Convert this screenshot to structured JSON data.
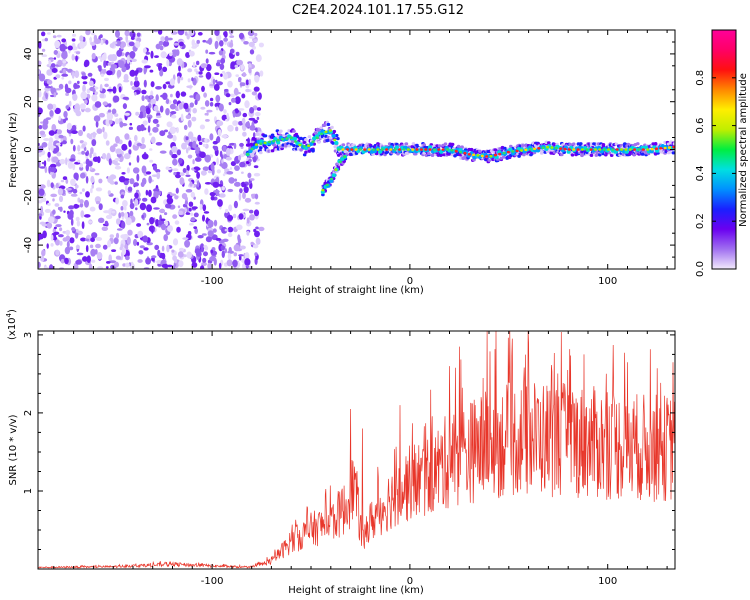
{
  "title": "C2E4.2024.101.17.55.G12",
  "chart_data": [
    {
      "type": "heatmap",
      "name": "spectrogram",
      "xlabel": "Height of straight line (km)",
      "ylabel": "Frequency (Hz)",
      "xlim": [
        -188,
        134
      ],
      "ylim": [
        -50,
        50
      ],
      "xticks": [
        -100,
        0,
        100
      ],
      "xtick_labels": [
        "-100",
        "0",
        "100"
      ],
      "yticks": [
        -40,
        -20,
        0,
        20,
        40
      ],
      "ytick_labels": [
        "-40",
        "-20",
        "0",
        "20",
        "40"
      ],
      "colorbar": {
        "label": "Normalized spectral amplitude",
        "range": [
          0,
          1
        ],
        "ticks": [
          0.0,
          0.2,
          0.4,
          0.6,
          0.8
        ],
        "tick_labels": [
          "0.0",
          "0.2",
          "0.4",
          "0.6",
          "0.8"
        ],
        "colors": [
          "#f2eafc",
          "#a070f0",
          "#6a00f0",
          "#1a20ff",
          "#0090ff",
          "#00e0e0",
          "#00ee40",
          "#c0ee00",
          "#ffee00",
          "#ff8800",
          "#ff1010",
          "#ff0066",
          "#ff0099"
        ]
      },
      "noise_region_x": [
        -188,
        -75
      ],
      "ridge": [
        [
          -82,
          -2
        ],
        [
          -78,
          2
        ],
        [
          -72,
          3
        ],
        [
          -66,
          4
        ],
        [
          -60,
          5
        ],
        [
          -56,
          2
        ],
        [
          -52,
          1
        ],
        [
          -48,
          4
        ],
        [
          -44,
          7
        ],
        [
          -40,
          8
        ],
        [
          -36,
          0
        ],
        [
          -30,
          0
        ],
        [
          -20,
          0
        ],
        [
          -10,
          0
        ],
        [
          0,
          0
        ],
        [
          10,
          0
        ],
        [
          20,
          0
        ],
        [
          30,
          -2
        ],
        [
          40,
          -3
        ],
        [
          50,
          -1
        ],
        [
          60,
          0
        ],
        [
          70,
          1
        ],
        [
          80,
          0
        ],
        [
          90,
          0
        ],
        [
          100,
          0
        ],
        [
          110,
          0
        ],
        [
          120,
          0
        ],
        [
          134,
          1
        ]
      ],
      "branch": [
        [
          -44,
          -17
        ],
        [
          -40,
          -13
        ],
        [
          -36,
          -6
        ],
        [
          -32,
          -2
        ]
      ]
    },
    {
      "type": "line",
      "name": "snr",
      "xlabel": "Height of straight line (km)",
      "ylabel": "SNR (10 * v/v)",
      "y_scale_label": "(x10",
      "y_scale_exp": "4",
      "y_scale_close": ")",
      "xlim": [
        -188,
        134
      ],
      "ylim": [
        0,
        3.05
      ],
      "xticks": [
        -100,
        0,
        100
      ],
      "xtick_labels": [
        "-100",
        "0",
        "100"
      ],
      "yticks": [
        1,
        2,
        3
      ],
      "ytick_labels": [
        "1",
        "2",
        "3"
      ],
      "color": "#e8362a",
      "envelope": [
        [
          -188,
          0.02
        ],
        [
          -150,
          0.03
        ],
        [
          -120,
          0.06
        ],
        [
          -100,
          0.04
        ],
        [
          -80,
          0.02
        ],
        [
          -70,
          0.1
        ],
        [
          -60,
          0.35
        ],
        [
          -50,
          0.5
        ],
        [
          -40,
          0.6
        ],
        [
          -32,
          0.8
        ],
        [
          -28,
          1.1
        ],
        [
          -24,
          0.35
        ],
        [
          -20,
          0.6
        ],
        [
          -10,
          0.9
        ],
        [
          0,
          1.1
        ],
        [
          10,
          1.2
        ],
        [
          20,
          1.4
        ],
        [
          30,
          1.5
        ],
        [
          40,
          1.6
        ],
        [
          60,
          1.7
        ],
        [
          80,
          1.65
        ],
        [
          100,
          1.6
        ],
        [
          120,
          1.55
        ],
        [
          134,
          1.55
        ]
      ],
      "peaks": [
        [
          -30,
          2.05
        ],
        [
          -24,
          1.8
        ],
        [
          -5,
          2.1
        ],
        [
          20,
          2.6
        ],
        [
          25,
          2.85
        ],
        [
          39,
          3.05
        ],
        [
          60,
          2.9
        ],
        [
          88,
          2.75
        ],
        [
          110,
          2.65
        ],
        [
          133,
          2.65
        ]
      ]
    }
  ]
}
